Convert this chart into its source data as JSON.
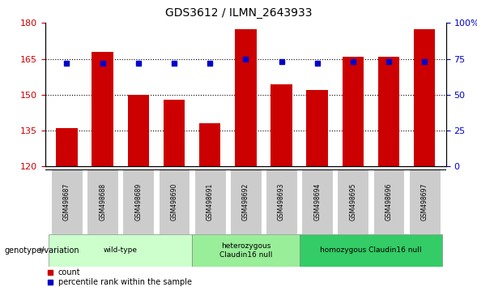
{
  "title": "GDS3612 / ILMN_2643933",
  "samples": [
    "GSM498687",
    "GSM498688",
    "GSM498689",
    "GSM498690",
    "GSM498691",
    "GSM498692",
    "GSM498693",
    "GSM498694",
    "GSM498695",
    "GSM498696",
    "GSM498697"
  ],
  "bar_values": [
    136.0,
    168.0,
    150.0,
    148.0,
    138.0,
    177.5,
    154.5,
    152.0,
    166.0,
    166.0,
    177.5
  ],
  "percentile_values": [
    163.0,
    163.0,
    163.0,
    163.0,
    163.0,
    165.0,
    164.0,
    163.0,
    164.0,
    164.0,
    164.0
  ],
  "bar_color": "#cc0000",
  "percentile_color": "#0000cc",
  "ylim_left": [
    120,
    180
  ],
  "ylim_right": [
    0,
    100
  ],
  "yticks_left": [
    120,
    135,
    150,
    165,
    180
  ],
  "yticks_right": [
    0,
    25,
    50,
    75,
    100
  ],
  "grid_values": [
    135,
    150,
    165
  ],
  "groups": [
    {
      "label": "wild-type",
      "start": 0,
      "end": 3,
      "color": "#ccffcc"
    },
    {
      "label": "heterozygous\nClaudin16 null",
      "start": 4,
      "end": 6,
      "color": "#99ee99"
    },
    {
      "label": "homozygous Claudin16 null",
      "start": 7,
      "end": 10,
      "color": "#33cc66"
    }
  ],
  "genotype_label": "genotype/variation",
  "legend_count_label": "count",
  "legend_pct_label": "percentile rank within the sample",
  "bar_color_legend": "#cc0000",
  "pct_color_legend": "#0000cc",
  "bar_width": 0.6,
  "background_color": "#ffffff",
  "plot_bg_color": "#ffffff",
  "tick_label_color_left": "#cc0000",
  "tick_label_color_right": "#0000cc",
  "sample_box_color": "#cccccc",
  "title_fontsize": 10
}
